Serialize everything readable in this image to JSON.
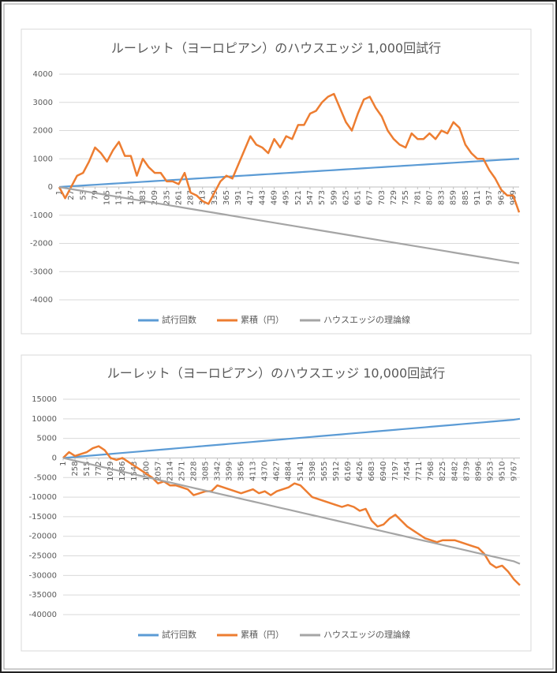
{
  "chart_data": [
    {
      "type": "line",
      "title": "ルーレット（ヨーロピアン）のハウスエッジ 1,000回試行",
      "categories": [
        1,
        null,
        27,
        null,
        53,
        null,
        79,
        null,
        105,
        null,
        131,
        null,
        157,
        null,
        183,
        null,
        209,
        null,
        235,
        null,
        261,
        null,
        287,
        null,
        313,
        null,
        339,
        null,
        365,
        null,
        391,
        null,
        417,
        null,
        443,
        null,
        469,
        null,
        495,
        null,
        521,
        null,
        547,
        null,
        573,
        null,
        599,
        null,
        625,
        null,
        651,
        null,
        677,
        null,
        703,
        null,
        729,
        null,
        755,
        null,
        781,
        null,
        807,
        null,
        833,
        null,
        859,
        null,
        885,
        null,
        911,
        null,
        937,
        null,
        963,
        null,
        989,
        null
      ],
      "series": [
        {
          "name": "試行回数",
          "color": "#5b9bd5",
          "values": [
            1,
            14,
            27,
            40,
            53,
            66,
            79,
            92,
            105,
            118,
            131,
            144,
            157,
            170,
            183,
            196,
            209,
            222,
            235,
            248,
            261,
            274,
            287,
            300,
            313,
            326,
            339,
            352,
            365,
            378,
            391,
            404,
            417,
            430,
            443,
            456,
            469,
            482,
            495,
            508,
            521,
            534,
            547,
            560,
            573,
            586,
            599,
            612,
            625,
            638,
            651,
            664,
            677,
            690,
            703,
            716,
            729,
            742,
            755,
            768,
            781,
            794,
            807,
            820,
            833,
            846,
            859,
            872,
            885,
            898,
            911,
            924,
            937,
            950,
            963,
            976,
            989,
            1000
          ]
        },
        {
          "name": "累積（円）",
          "color": "#ed7d31",
          "values": [
            0,
            -400,
            0,
            400,
            500,
            900,
            1400,
            1200,
            900,
            1300,
            1600,
            1100,
            1100,
            400,
            1000,
            700,
            500,
            500,
            200,
            200,
            100,
            500,
            -200,
            -300,
            -500,
            -600,
            -200,
            200,
            400,
            300,
            800,
            1300,
            1800,
            1500,
            1400,
            1200,
            1700,
            1400,
            1800,
            1700,
            2200,
            2200,
            2600,
            2700,
            3000,
            3200,
            3300,
            2800,
            2300,
            2000,
            2600,
            3100,
            3200,
            2800,
            2500,
            2000,
            1700,
            1500,
            1400,
            1900,
            1700,
            1700,
            1900,
            1700,
            2000,
            1900,
            2300,
            2100,
            1500,
            1200,
            1000,
            1000,
            600,
            300,
            -100,
            -300,
            -300,
            -900
          ]
        },
        {
          "name": "ハウスエッジの理論線",
          "color": "#a5a5a5",
          "values": [
            -3,
            -38,
            -73,
            -108,
            -143,
            -178,
            -214,
            -249,
            -284,
            -319,
            -354,
            -389,
            -424,
            -459,
            -495,
            -530,
            -565,
            -600,
            -635,
            -670,
            -705,
            -741,
            -776,
            -811,
            -846,
            -881,
            -916,
            -951,
            -986,
            -1022,
            -1057,
            -1092,
            -1127,
            -1162,
            -1197,
            -1232,
            -1268,
            -1303,
            -1338,
            -1373,
            -1408,
            -1443,
            -1478,
            -1514,
            -1549,
            -1584,
            -1619,
            -1654,
            -1689,
            -1724,
            -1759,
            -1795,
            -1830,
            -1865,
            -1900,
            -1935,
            -1970,
            -2005,
            -2041,
            -2076,
            -2111,
            -2146,
            -2181,
            -2216,
            -2251,
            -2286,
            -2322,
            -2357,
            -2392,
            -2427,
            -2462,
            -2497,
            -2532,
            -2568,
            -2603,
            -2638,
            -2673,
            -2703
          ]
        }
      ],
      "ylim": [
        -4000,
        4000
      ],
      "yticks": [
        -4000,
        -3000,
        -2000,
        -1000,
        0,
        1000,
        2000,
        3000,
        4000
      ],
      "grid": true,
      "legend": "bottom"
    },
    {
      "type": "line",
      "title": "ルーレット（ヨーロピアン）のハウスエッジ 10,000回試行",
      "categories": [
        1,
        null,
        258,
        null,
        515,
        null,
        772,
        null,
        1029,
        null,
        1286,
        null,
        1543,
        null,
        1800,
        null,
        2057,
        null,
        2314,
        null,
        2571,
        null,
        2828,
        null,
        3085,
        null,
        3342,
        null,
        3599,
        null,
        3856,
        null,
        4113,
        null,
        4370,
        null,
        4627,
        null,
        4884,
        null,
        5141,
        null,
        5398,
        null,
        5655,
        null,
        5912,
        null,
        6169,
        null,
        6426,
        null,
        6683,
        null,
        6940,
        null,
        7197,
        null,
        7454,
        null,
        7711,
        null,
        7968,
        null,
        8225,
        null,
        8482,
        null,
        8739,
        null,
        8996,
        null,
        9253,
        null,
        9510,
        null,
        9767,
        null
      ],
      "series": [
        {
          "name": "試行回数",
          "color": "#5b9bd5",
          "values": [
            1,
            130,
            258,
            387,
            515,
            644,
            772,
            901,
            1029,
            1158,
            1286,
            1415,
            1543,
            1672,
            1800,
            1929,
            2057,
            2186,
            2314,
            2443,
            2571,
            2700,
            2828,
            2957,
            3085,
            3214,
            3342,
            3471,
            3599,
            3728,
            3856,
            3985,
            4113,
            4242,
            4370,
            4499,
            4627,
            4756,
            4884,
            5013,
            5141,
            5270,
            5398,
            5527,
            5655,
            5784,
            5912,
            6041,
            6169,
            6298,
            6426,
            6555,
            6683,
            6812,
            6940,
            7069,
            7197,
            7326,
            7454,
            7583,
            7711,
            7840,
            7968,
            8097,
            8225,
            8354,
            8482,
            8611,
            8739,
            8868,
            8996,
            9125,
            9253,
            9382,
            9510,
            9639,
            9767,
            10000
          ]
        },
        {
          "name": "累積（円）",
          "color": "#ed7d31",
          "values": [
            0,
            1500,
            500,
            1000,
            1500,
            2500,
            3000,
            2000,
            0,
            -500,
            0,
            -1000,
            -2000,
            -3000,
            -4000,
            -5000,
            -6500,
            -6000,
            -7000,
            -7000,
            -7500,
            -8000,
            -9500,
            -9000,
            -8500,
            -8500,
            -7000,
            -7500,
            -8000,
            -8500,
            -9000,
            -8500,
            -8000,
            -9000,
            -8500,
            -9500,
            -8500,
            -8000,
            -7500,
            -6500,
            -7000,
            -8500,
            -10000,
            -10500,
            -11000,
            -11500,
            -12000,
            -12500,
            -12000,
            -12500,
            -13500,
            -13000,
            -16000,
            -17500,
            -17000,
            -15500,
            -14500,
            -16000,
            -17500,
            -18500,
            -19500,
            -20500,
            -21000,
            -21500,
            -21000,
            -21000,
            -21000,
            -21500,
            -22000,
            -22500,
            -23000,
            -24500,
            -27000,
            -28000,
            -27500,
            -29000,
            -31000,
            -32500
          ]
        },
        {
          "name": "ハウスエッジの理論線",
          "color": "#a5a5a5",
          "values": [
            -3,
            -351,
            -697,
            -1046,
            -1392,
            -1741,
            -2086,
            -2435,
            -2781,
            -3130,
            -3476,
            -3824,
            -4170,
            -4519,
            -4865,
            -5214,
            -5559,
            -5908,
            -6254,
            -6603,
            -6949,
            -7297,
            -7643,
            -7992,
            -8338,
            -8686,
            -9032,
            -9381,
            -9727,
            -10076,
            -10422,
            -10770,
            -11116,
            -11465,
            -11811,
            -12159,
            -12505,
            -12854,
            -13200,
            -13549,
            -13895,
            -14243,
            -14589,
            -14938,
            -15284,
            -15632,
            -15978,
            -16327,
            -16673,
            -17022,
            -17368,
            -17716,
            -18062,
            -18411,
            -18757,
            -19105,
            -19451,
            -19800,
            -20146,
            -20495,
            -20841,
            -21189,
            -21535,
            -21884,
            -22230,
            -22578,
            -22924,
            -23273,
            -23619,
            -23968,
            -24314,
            -24662,
            -25008,
            -25357,
            -25703,
            -26051,
            -26397,
            -27027
          ]
        }
      ],
      "ylim": [
        -40000,
        15000
      ],
      "yticks": [
        -40000,
        -35000,
        -30000,
        -25000,
        -20000,
        -15000,
        -10000,
        -5000,
        0,
        5000,
        10000,
        15000
      ],
      "grid": true,
      "legend": "bottom"
    }
  ]
}
